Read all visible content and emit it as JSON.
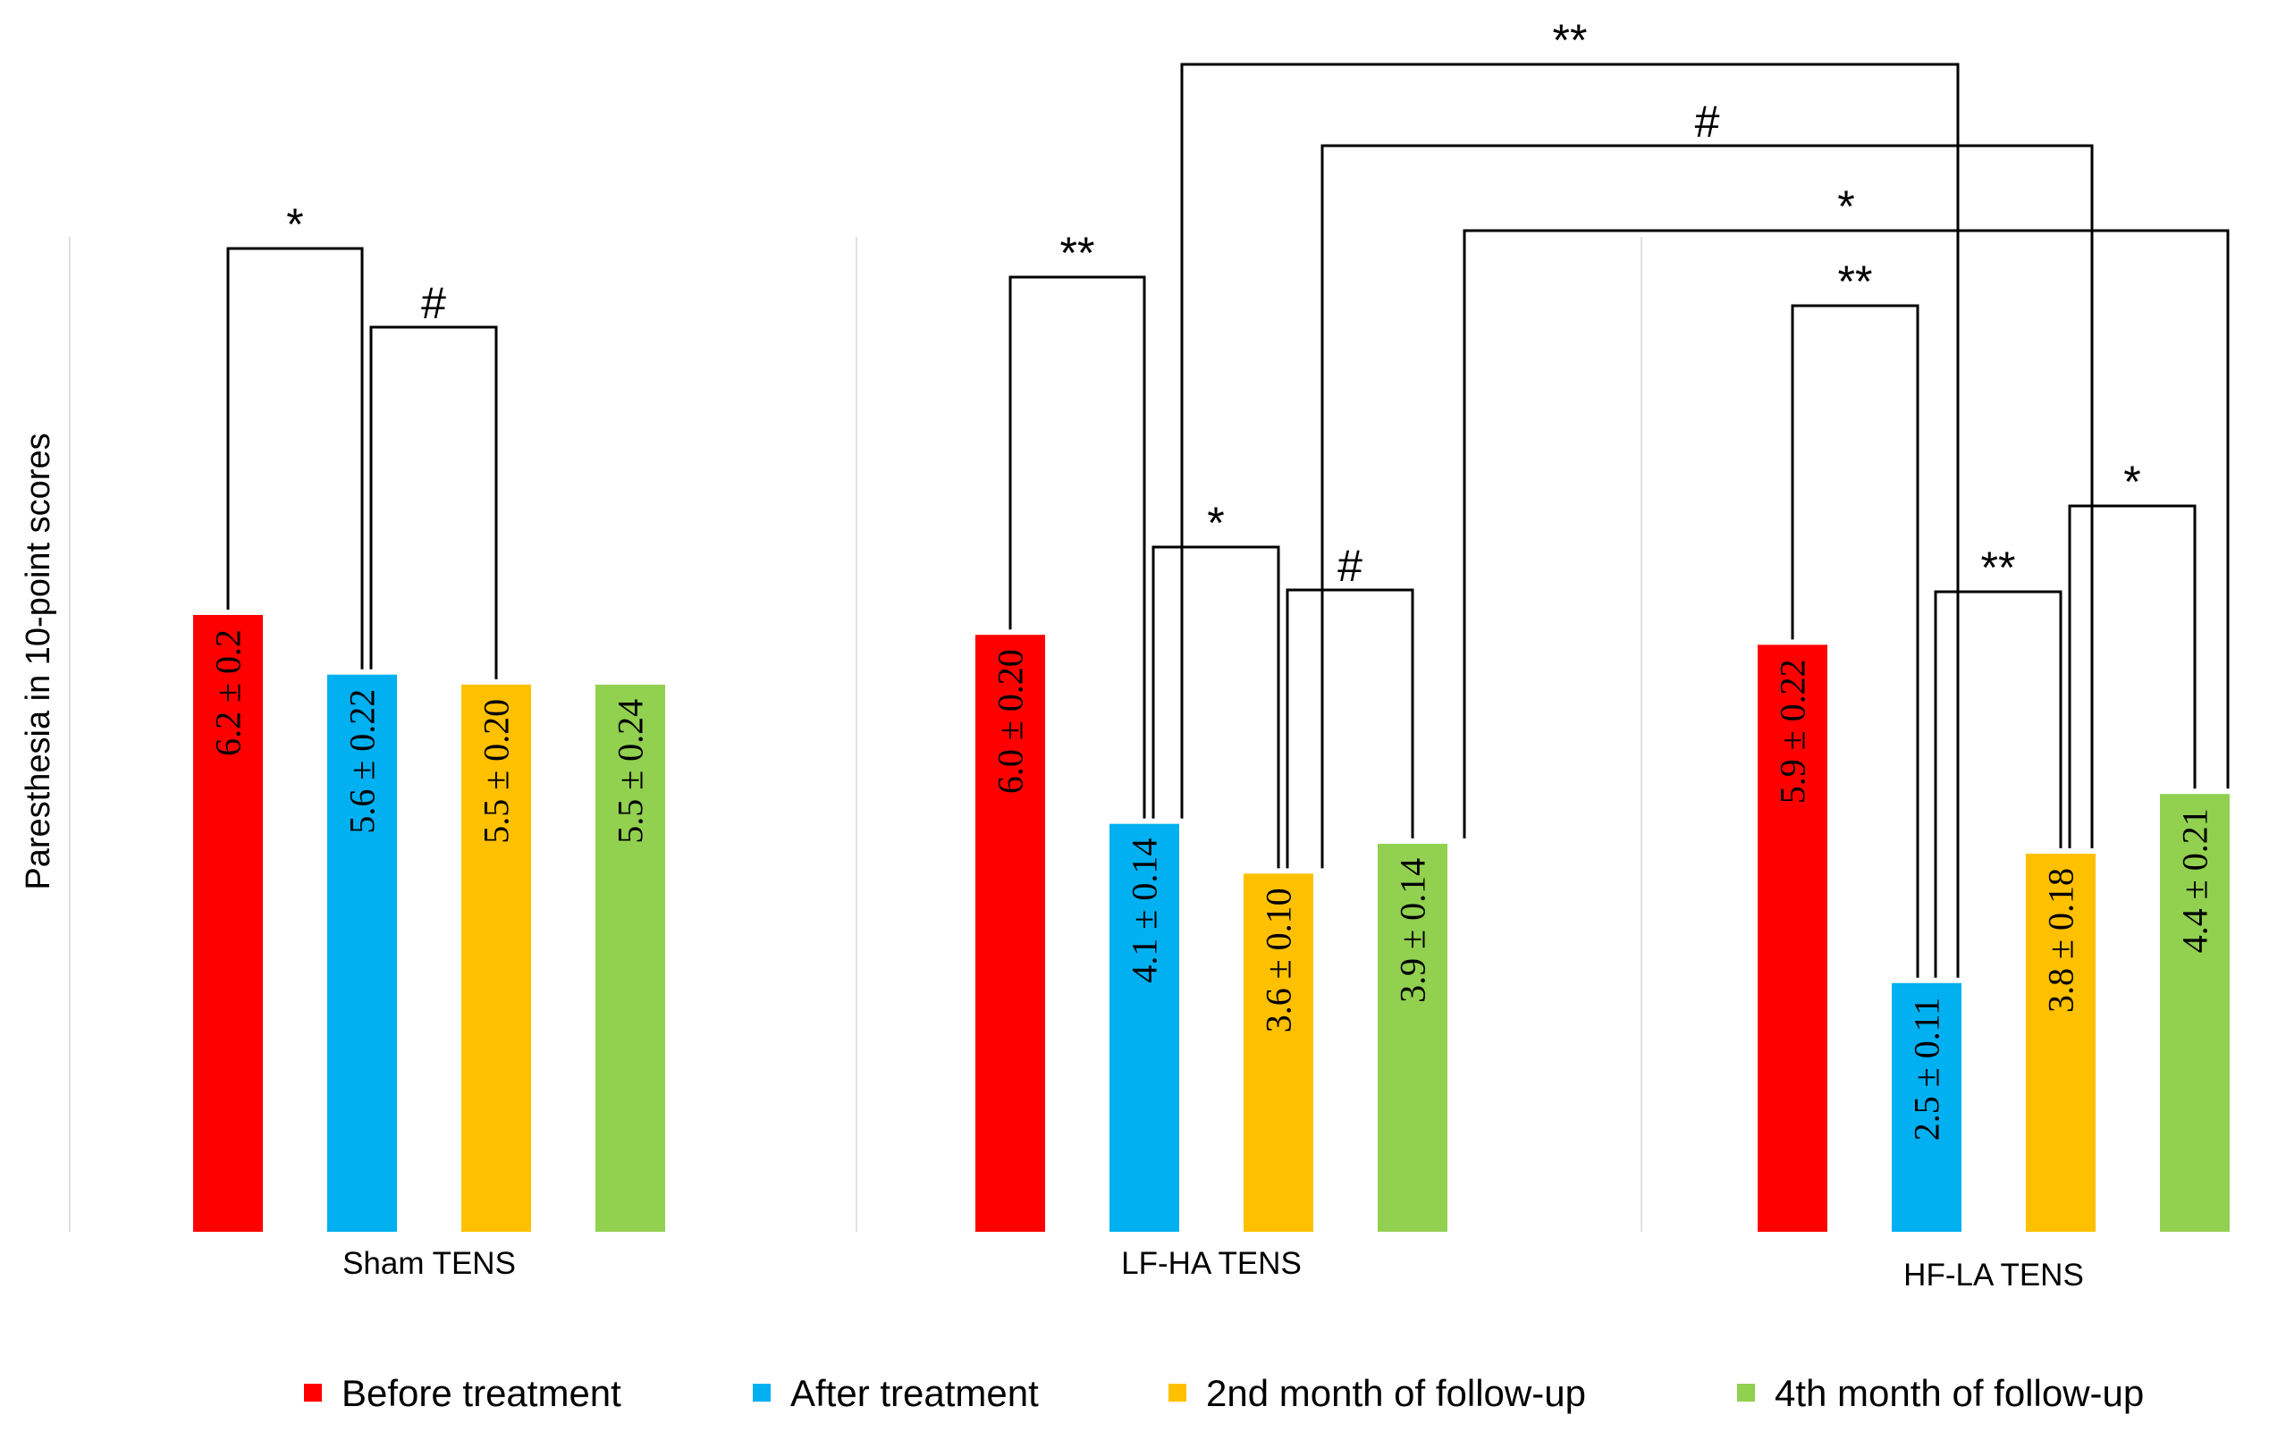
{
  "chart_data": {
    "type": "bar",
    "title": "",
    "xlabel": "",
    "ylabel": "Paresthesia in 10-point scores",
    "ylim": [
      0,
      10
    ],
    "categories": [
      "Sham TENS",
      "LF-HA TENS",
      "HF-LA TENS"
    ],
    "series": [
      {
        "name": "Before treatment",
        "color": "#ff0000",
        "values": [
          6.2,
          6.0,
          5.9
        ],
        "labels": [
          "6.2 ± 0.2",
          "6.0 ± 0.20",
          "5.9 ± 0.22"
        ]
      },
      {
        "name": "After treatment",
        "color": "#00b0f0",
        "values": [
          5.6,
          4.1,
          2.5
        ],
        "labels": [
          "5.6 ± 0.22",
          "4.1 ± 0.14",
          "2.5 ± 0.11"
        ]
      },
      {
        "name": "2nd month of follow-up",
        "color": "#ffc000",
        "values": [
          5.5,
          3.6,
          3.8
        ],
        "labels": [
          "5.5 ± 0.20",
          "3.6 ± 0.10",
          "3.8 ± 0.18"
        ]
      },
      {
        "name": "4th month of follow-up",
        "color": "#92d050",
        "values": [
          5.5,
          3.9,
          4.4
        ],
        "labels": [
          "5.5 ± 0.24",
          "3.9 ± 0.14",
          "4.4 ± 0.21"
        ]
      }
    ],
    "legend_position": "bottom",
    "grid": false,
    "significance": [
      {
        "group": "Sham TENS",
        "from": "Before treatment",
        "to": "After treatment",
        "marker": "*"
      },
      {
        "group": "Sham TENS",
        "from": "After treatment",
        "to": "2nd month of follow-up",
        "marker": "#"
      },
      {
        "group": "LF-HA TENS",
        "from": "Before treatment",
        "to": "After treatment",
        "marker": "**"
      },
      {
        "group": "LF-HA TENS",
        "from": "After treatment",
        "to": "2nd month of follow-up",
        "marker": "*"
      },
      {
        "group": "LF-HA TENS",
        "from": "2nd month of follow-up",
        "to": "4th month of follow-up",
        "marker": "#"
      },
      {
        "group": "HF-LA TENS",
        "from": "Before treatment",
        "to": "After treatment",
        "marker": "**"
      },
      {
        "group": "HF-LA TENS",
        "from": "After treatment",
        "to": "2nd month of follow-up",
        "marker": "**"
      },
      {
        "group": "HF-LA TENS",
        "from": "2nd month of follow-up",
        "to": "4th month of follow-up",
        "marker": "*"
      },
      {
        "group": "LF-HA vs HF-LA",
        "from": "After treatment",
        "to": "After treatment",
        "marker": "**"
      },
      {
        "group": "LF-HA vs HF-LA",
        "from": "2nd month of follow-up",
        "to": "2nd month of follow-up",
        "marker": "#"
      },
      {
        "group": "LF-HA vs HF-LA",
        "from": "4th month of follow-up",
        "to": "4th month of follow-up",
        "marker": "*"
      }
    ]
  }
}
